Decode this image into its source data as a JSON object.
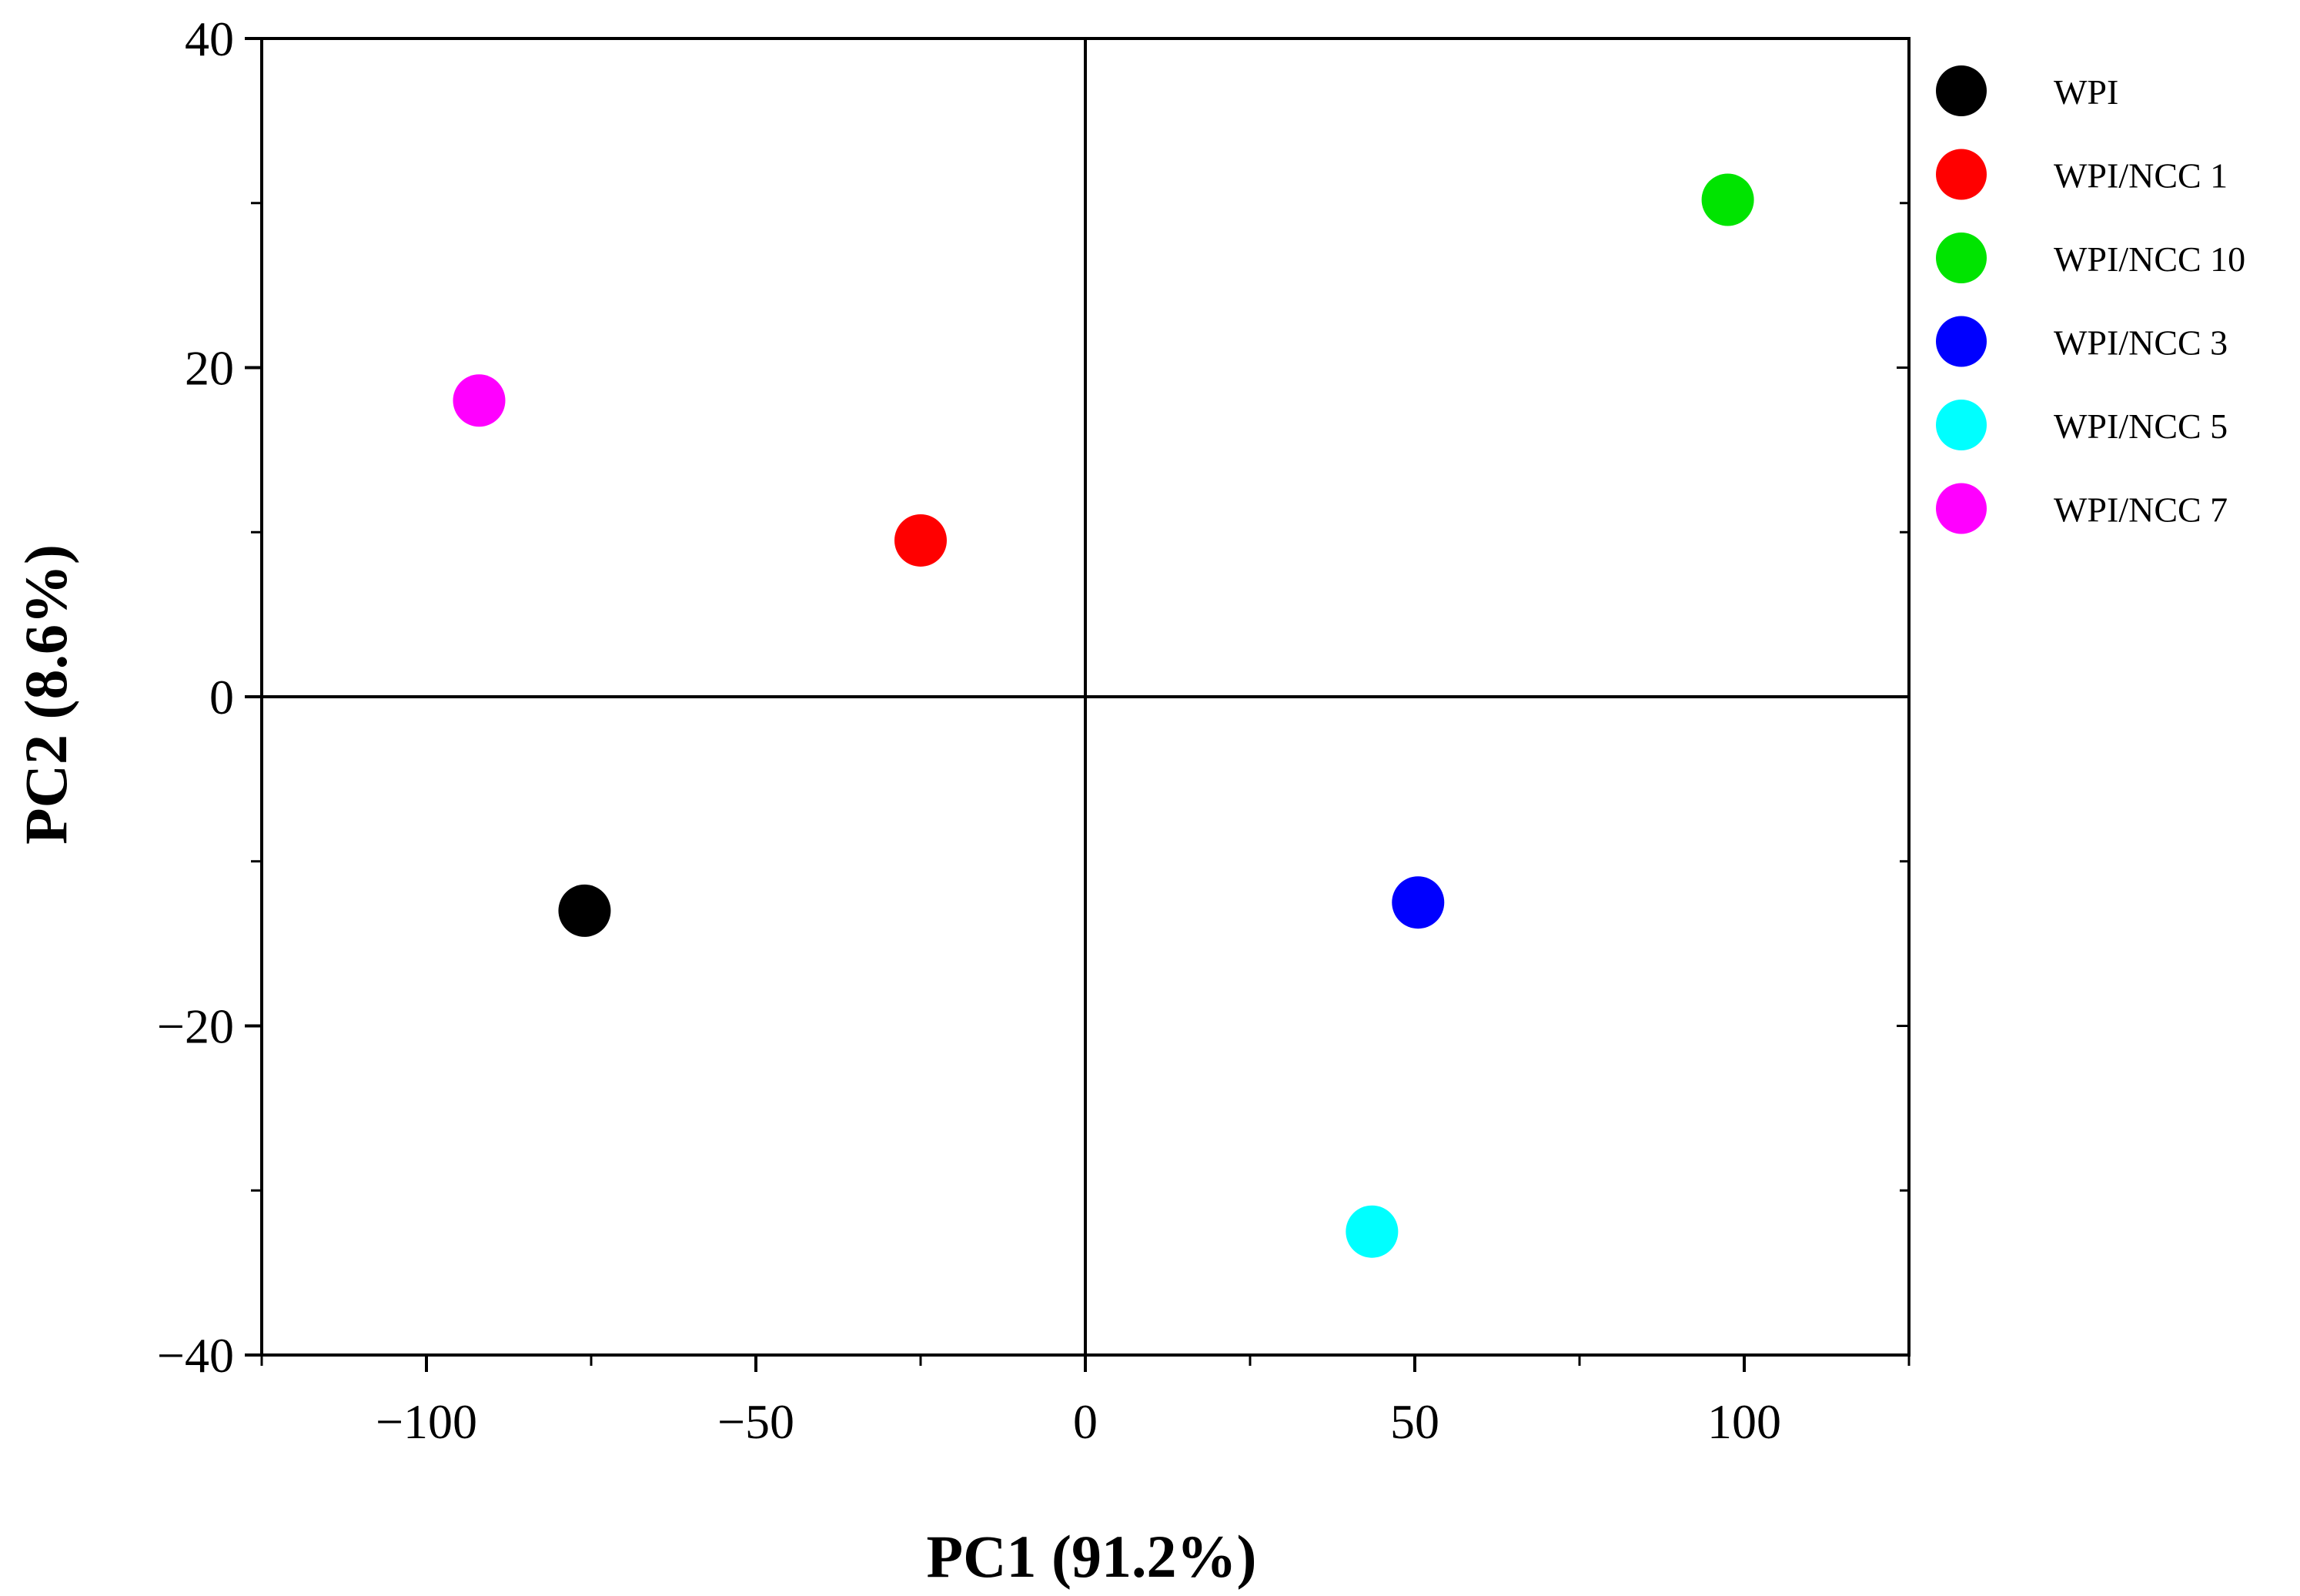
{
  "chart_data": {
    "type": "scatter",
    "title": "",
    "xlabel": "PC1 (91.2%)",
    "ylabel": "PC2 (8.6%)",
    "xlim": [
      -125,
      125
    ],
    "ylim": [
      -40,
      40
    ],
    "xticks": [
      -100,
      -50,
      0,
      50,
      100
    ],
    "xtick_labels": [
      "−100",
      "−50",
      "0",
      "50",
      "100"
    ],
    "yticks": [
      40,
      20,
      0,
      -20,
      -40
    ],
    "ytick_labels": [
      "40",
      "20",
      "0",
      "−20",
      "−40"
    ],
    "zero_lines": true,
    "grid": false,
    "legend_position": "right",
    "series": [
      {
        "name": "WPI",
        "color": "#000000",
        "x": -76,
        "y": -13
      },
      {
        "name": "WPI/NCC 1",
        "color": "#ff0000",
        "x": -25,
        "y": 9.5
      },
      {
        "name": "WPI/NCC 10",
        "color": "#00e400",
        "x": 97.5,
        "y": 30.2
      },
      {
        "name": "WPI/NCC 3",
        "color": "#0000ff",
        "x": 50.5,
        "y": -12.5
      },
      {
        "name": "WPI/NCC 5",
        "color": "#00ffff",
        "x": 43.5,
        "y": -32.5
      },
      {
        "name": "WPI/NCC 7",
        "color": "#ff00ff",
        "x": -92,
        "y": 18
      }
    ]
  }
}
